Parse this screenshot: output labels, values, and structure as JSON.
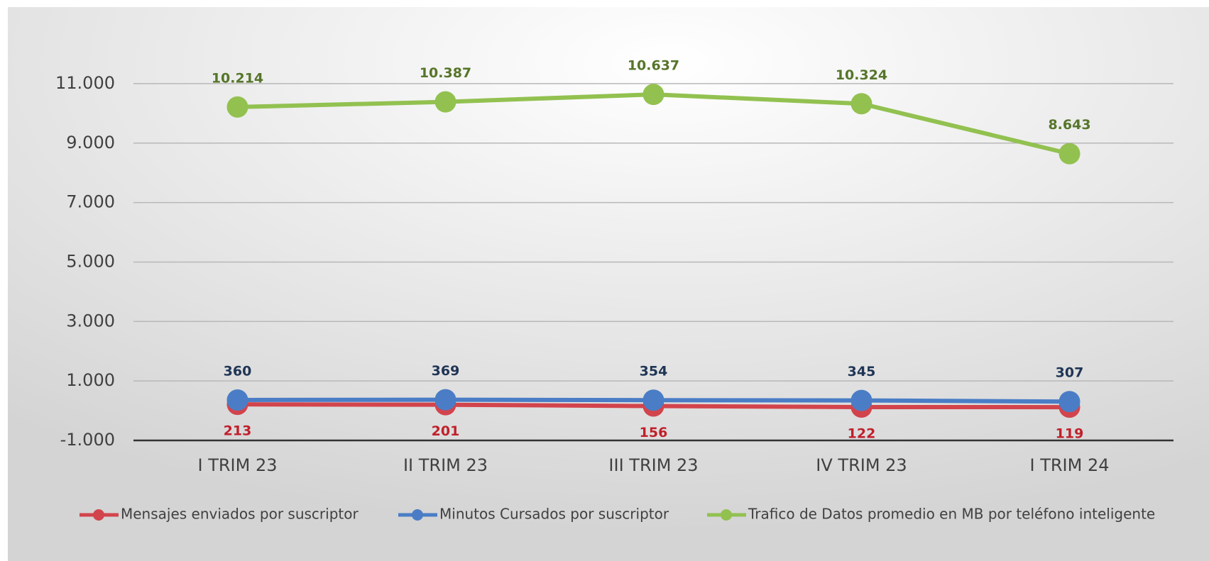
{
  "chart_data": {
    "type": "line",
    "categories": [
      "I TRIM 23",
      "II TRIM 23",
      "III TRIM 23",
      "IV TRIM 23",
      "I TRIM 24"
    ],
    "series": [
      {
        "name": "Mensajes enviados por suscriptor",
        "color": "#d2444c",
        "label_color": "#c0202b",
        "values": [
          213,
          201,
          156,
          122,
          119
        ]
      },
      {
        "name": "Minutos Cursados por suscriptor",
        "color": "#4a7dc6",
        "label_color": "#1f3555",
        "values": [
          360,
          369,
          354,
          345,
          307
        ]
      },
      {
        "name": "Trafico de Datos promedio en MB por teléfono inteligente",
        "color": "#92c150",
        "label_color": "#56752a",
        "values": [
          10214,
          10387,
          10637,
          10324,
          8643
        ],
        "value_labels": [
          "10.214",
          "10.387",
          "10.637",
          "10.324",
          "8.643"
        ]
      }
    ],
    "ylim": [
      -1000,
      12000
    ],
    "yticks": [
      {
        "value": -1000,
        "label": "-1.000"
      },
      {
        "value": 1000,
        "label": "1.000"
      },
      {
        "value": 3000,
        "label": "3.000"
      },
      {
        "value": 5000,
        "label": "5.000"
      },
      {
        "value": 7000,
        "label": "7.000"
      },
      {
        "value": 9000,
        "label": "9.000"
      },
      {
        "value": 11000,
        "label": "11.000"
      }
    ],
    "grid": true,
    "legend": "bottom"
  }
}
